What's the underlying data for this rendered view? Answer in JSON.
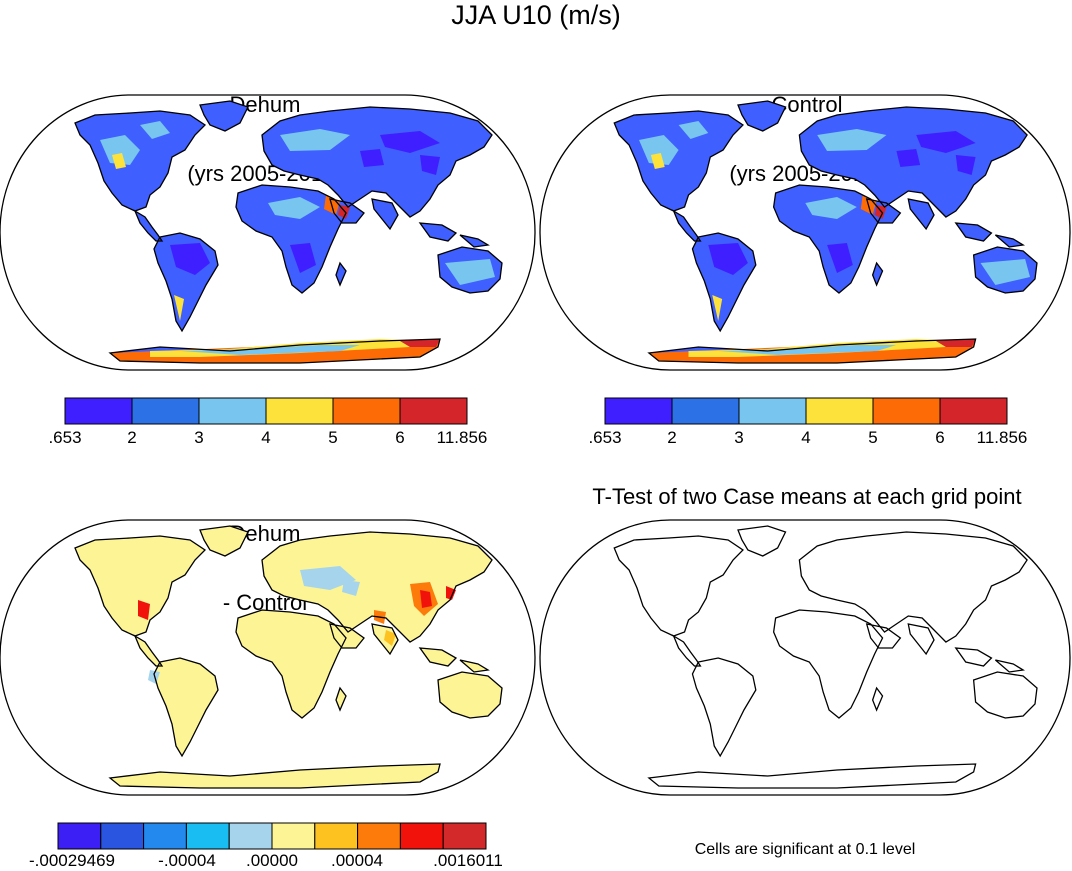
{
  "title": "JJA U10 (m/s)",
  "panels": [
    {
      "id": "dehum",
      "title_lines": [
        "Dehum",
        "(yrs 2005-2014)"
      ]
    },
    {
      "id": "control",
      "title_lines": [
        "Control",
        "(yrs 2005-2014)"
      ]
    },
    {
      "id": "diff",
      "title_lines": [
        "Dehum",
        "- Control"
      ]
    },
    {
      "id": "ttest",
      "title_lines": [
        "T-Test of two Case means at each grid point"
      ]
    }
  ],
  "wind_colorbar": {
    "colors": [
      "#3f1fff",
      "#2c72e6",
      "#78c6ef",
      "#fde23c",
      "#fd6b06",
      "#d3252a"
    ],
    "labels": [
      ".653",
      "2",
      "3",
      "4",
      "5",
      "6",
      "11.856"
    ]
  },
  "diff_colorbar": {
    "colors": [
      "#3c1ff4",
      "#2a55e0",
      "#2489ee",
      "#19bdf1",
      "#a6d4ec",
      "#fdf595",
      "#fdc220",
      "#fd7b0b",
      "#f2120c",
      "#d3292a"
    ],
    "labels": [
      "-.00029469",
      "-.00004",
      ".00000",
      ".00004",
      ".0016011"
    ]
  },
  "ttest_note": "Cells are significant at 0.1 level"
}
